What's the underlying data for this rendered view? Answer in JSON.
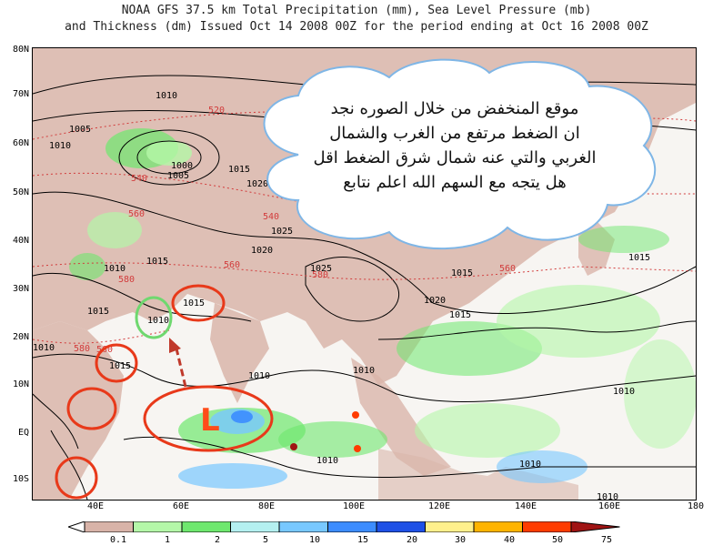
{
  "title": {
    "line1": "NOAA GFS 37.5 km Total Precipitation (mm), Sea Level Pressure (mb)",
    "line2": "and Thickness (dm)  Issued Oct 14 2008 00Z for the period ending at Oct 16 2008 00Z"
  },
  "latitudes": [
    "80N",
    "70N",
    "60N",
    "50N",
    "40N",
    "30N",
    "20N",
    "10N",
    "EQ",
    "10S"
  ],
  "longitudes": [
    "40E",
    "60E",
    "80E",
    "100E",
    "120E",
    "140E",
    "160E",
    "180"
  ],
  "legend": {
    "labels": [
      "0.1",
      "1",
      "2",
      "5",
      "10",
      "15",
      "20",
      "30",
      "40",
      "50",
      "75"
    ],
    "colors": [
      "#d8b3a8",
      "#b4f7a8",
      "#6ee86e",
      "#b4f0f0",
      "#78c8ff",
      "#3c8cff",
      "#1e50e6",
      "#fff08c",
      "#ffb400",
      "#ff3c00",
      "#a01414"
    ]
  },
  "isobar_labels": [
    "1010",
    "1005",
    "1000",
    "1005",
    "1010",
    "1015",
    "1020",
    "1025",
    "1025",
    "1020",
    "1015",
    "1010",
    "1015",
    "1010",
    "1015",
    "1015",
    "1010",
    "1010",
    "1010",
    "1015",
    "1020",
    "1015",
    "1010",
    "1010",
    "1010",
    "1015",
    "1010"
  ],
  "thickness_labels": [
    "520",
    "540",
    "560",
    "560",
    "580",
    "560",
    "580",
    "580",
    "540",
    "560"
  ],
  "annotation": {
    "text_lines": [
      "موقع المنخفض  من خلال الصوره نجد",
      "ان الضغط مرتفع من الغرب والشمال",
      "الغربي والتي عنه شمال شرق الضغط اقل",
      "هل يتجه مع السهم الله اعلم نتابع"
    ],
    "low_marker": "L"
  },
  "colors": {
    "land": "#d9b5aa",
    "ocean": "#f7f5f2",
    "circle_red": "#e8391a",
    "circle_green": "#6fd86f",
    "arrow": "#c0392b",
    "callout_border": "#7fb6e6",
    "isobar": "#000000",
    "thickness": "#d23c3c"
  }
}
